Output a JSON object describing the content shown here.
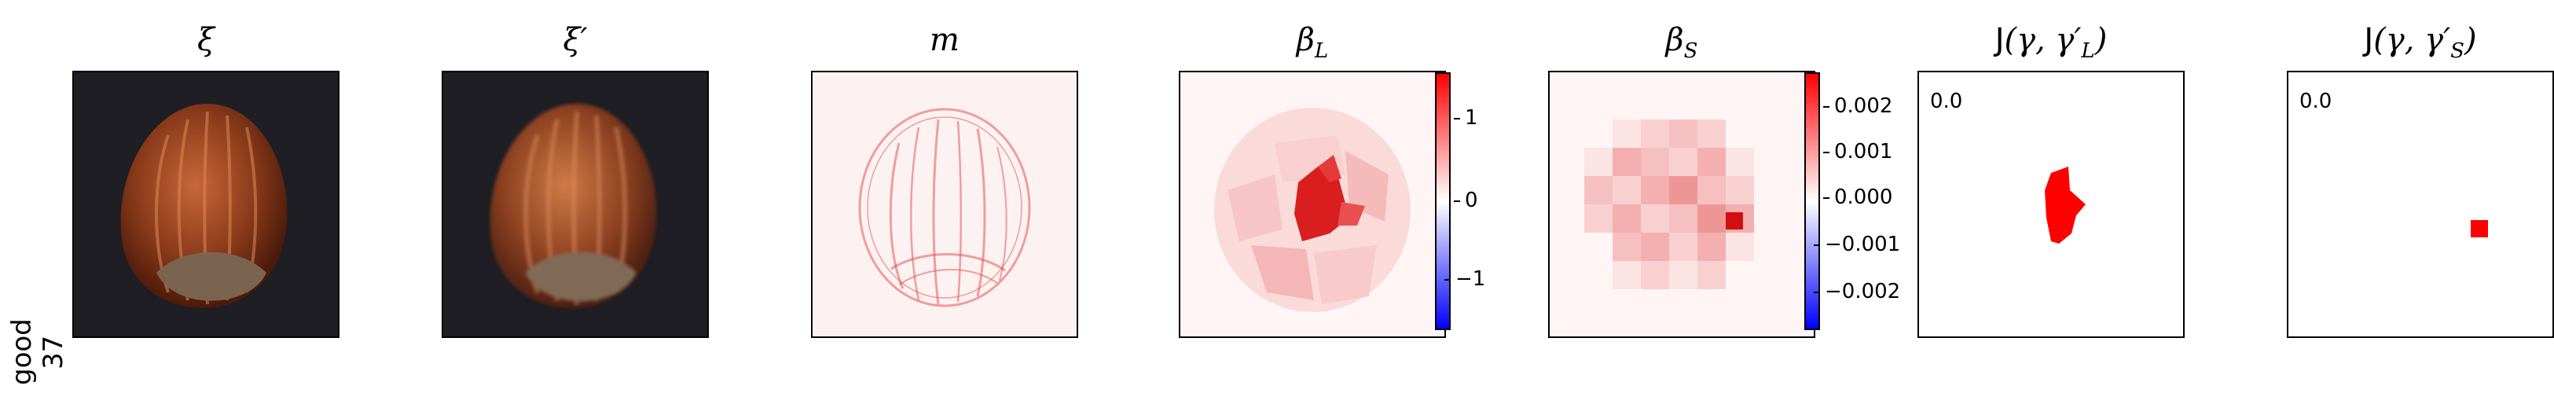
{
  "row_label": {
    "line1": "good",
    "line2": "37"
  },
  "panels": {
    "xi": {
      "title": "ξ"
    },
    "xi_prime": {
      "title": "ξ′"
    },
    "m": {
      "title": "m"
    },
    "beta_L": {
      "title_main": "β",
      "title_sub": "L",
      "colorbar_ticks": [
        "1",
        "0",
        "−1"
      ]
    },
    "beta_S": {
      "title_main": "β",
      "title_sub": "S",
      "colorbar_ticks": [
        "0.002",
        "0.001",
        "0.000",
        "−0.001",
        "−0.002"
      ]
    },
    "J_L": {
      "title_fn": "J",
      "title_args": "(γ, γ′",
      "title_sub": "L",
      "title_close": ")",
      "annotation": "0.0"
    },
    "J_S": {
      "title_fn": "J",
      "title_args": "(γ, γ′",
      "title_sub": "S",
      "title_close": ")",
      "annotation": "0.0"
    }
  },
  "colors": {
    "positive": "#ff0000",
    "zero": "#ffffff",
    "negative": "#0000ff",
    "image_bg": "#1e1e24"
  }
}
